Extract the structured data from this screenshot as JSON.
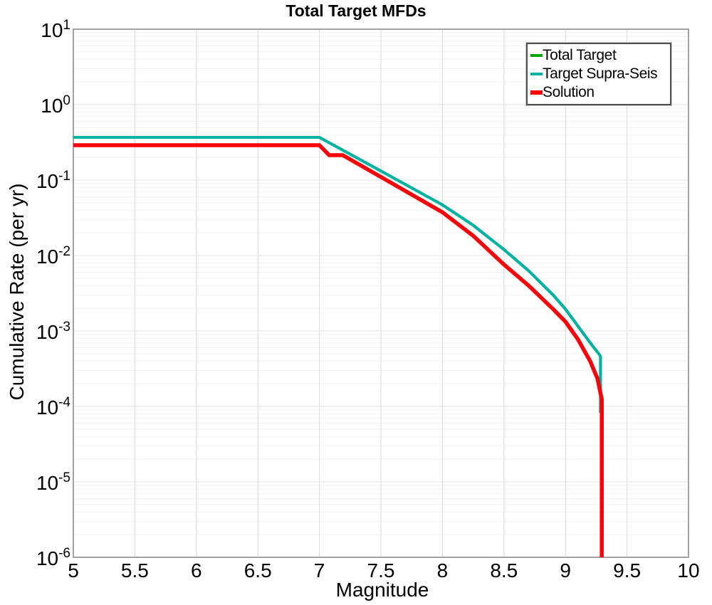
{
  "title": "Total Target MFDs",
  "background_color": "#ffffff",
  "plot": {
    "border_color": "#999999",
    "gridline_minor_color": "#f2f2f2",
    "gridline_major_color": "#e7e7e7",
    "gridline_vertical_color": "#e0e0e0"
  },
  "legend": {
    "position": "top-right",
    "swatch_heights": [
      4,
      4,
      6
    ],
    "border_color": "#4f4f4f"
  },
  "chart_data": {
    "type": "line",
    "title": "Total Target MFDs",
    "xlabel": "Magnitude",
    "ylabel": "Cumulative Rate (per yr)",
    "xlim": [
      5,
      10
    ],
    "ylim": [
      1e-06,
      10
    ],
    "ylog_exponent_range": [
      -6,
      1
    ],
    "x_scale": "linear",
    "y_scale": "log",
    "grid": "major + log-minor horizontal, vertical every 0.5 magnitude",
    "x_tick_values": [
      5,
      5.5,
      6,
      6.5,
      7,
      7.5,
      8,
      8.5,
      9,
      9.5,
      10
    ],
    "x_tick_labels": [
      "5",
      "5.5",
      "6",
      "6.5",
      "7",
      "7.5",
      "8",
      "8.5",
      "9",
      "9.5",
      "10"
    ],
    "y_tick_base": "10",
    "y_tick_exponents": [
      "1",
      "0",
      "-1",
      "-2",
      "-3",
      "-4",
      "-5",
      "-6"
    ],
    "legend_position": "top-right",
    "series": [
      {
        "name": "Total Target",
        "color": "#00a800",
        "stroke_width": 4,
        "points": [
          [
            5.0,
            0.368
          ],
          [
            7.0,
            0.368
          ],
          [
            7.5,
            0.132
          ],
          [
            8.0,
            0.047
          ],
          [
            8.25,
            0.0252
          ],
          [
            8.5,
            0.012
          ],
          [
            8.7,
            0.0063
          ],
          [
            8.9,
            0.003
          ],
          [
            9.0,
            0.00195
          ],
          [
            9.1,
            0.00117
          ],
          [
            9.2,
            0.0007
          ],
          [
            9.27,
            0.0005
          ],
          [
            9.285,
            0.00046
          ],
          [
            9.285,
            8.2e-05
          ]
        ]
      },
      {
        "name": "Target Supra-Seis",
        "color": "#00b3a4",
        "stroke_width": 4,
        "points": [
          [
            5.0,
            0.368
          ],
          [
            7.0,
            0.368
          ],
          [
            7.5,
            0.132
          ],
          [
            8.0,
            0.047
          ],
          [
            8.25,
            0.0252
          ],
          [
            8.5,
            0.012
          ],
          [
            8.7,
            0.0063
          ],
          [
            8.9,
            0.003
          ],
          [
            9.0,
            0.00195
          ],
          [
            9.1,
            0.00117
          ],
          [
            9.2,
            0.0007
          ],
          [
            9.27,
            0.0005
          ],
          [
            9.285,
            0.00046
          ],
          [
            9.285,
            8.2e-05
          ]
        ]
      },
      {
        "name": "Solution",
        "color": "#fb0006",
        "stroke_width": 5.5,
        "points": [
          [
            5.0,
            0.29
          ],
          [
            7.0,
            0.29
          ],
          [
            7.08,
            0.214
          ],
          [
            7.19,
            0.214
          ],
          [
            7.5,
            0.11
          ],
          [
            8.0,
            0.0375
          ],
          [
            8.25,
            0.0183
          ],
          [
            8.5,
            0.0076
          ],
          [
            8.7,
            0.004
          ],
          [
            8.9,
            0.00195
          ],
          [
            9.0,
            0.00133
          ],
          [
            9.1,
            0.00078
          ],
          [
            9.2,
            0.0004
          ],
          [
            9.26,
            0.000235
          ],
          [
            9.295,
            0.000125
          ],
          [
            9.295,
            1e-06
          ]
        ]
      }
    ]
  }
}
